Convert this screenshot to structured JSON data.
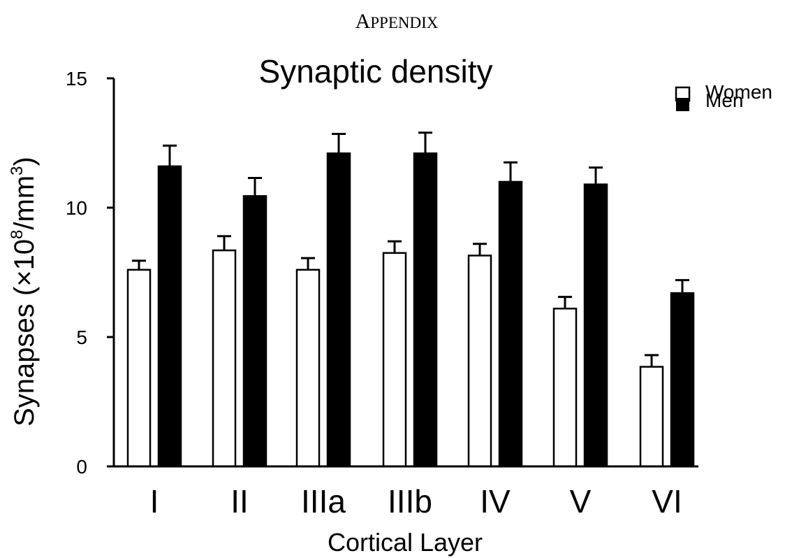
{
  "page": {
    "heading_initial": "A",
    "heading_rest": "PPENDIX"
  },
  "chart_data": {
    "type": "bar",
    "title": "Synaptic density",
    "xlabel": "Cortical Layer",
    "ylabel_main": "Synapses (×10",
    "ylabel_exp1": "8",
    "ylabel_mid": "/mm",
    "ylabel_exp2": "3",
    "ylabel_end": ")",
    "ylim": [
      0,
      15
    ],
    "yticks": [
      0,
      5,
      10,
      15
    ],
    "categories": [
      "I",
      "II",
      "IIIa",
      "IIIb",
      "IV",
      "V",
      "VI"
    ],
    "series": [
      {
        "name": "Women",
        "fill": "#ffffff",
        "values": [
          7.6,
          8.35,
          7.6,
          8.25,
          8.15,
          6.1,
          3.85
        ],
        "errors": [
          0.35,
          0.55,
          0.45,
          0.45,
          0.45,
          0.45,
          0.45
        ]
      },
      {
        "name": "Men",
        "fill": "#000000",
        "values": [
          11.6,
          10.45,
          12.1,
          12.1,
          11.0,
          10.9,
          6.7
        ],
        "errors": [
          0.8,
          0.7,
          0.75,
          0.8,
          0.75,
          0.65,
          0.5
        ]
      }
    ],
    "legend_position": "top-right",
    "grid": false
  }
}
